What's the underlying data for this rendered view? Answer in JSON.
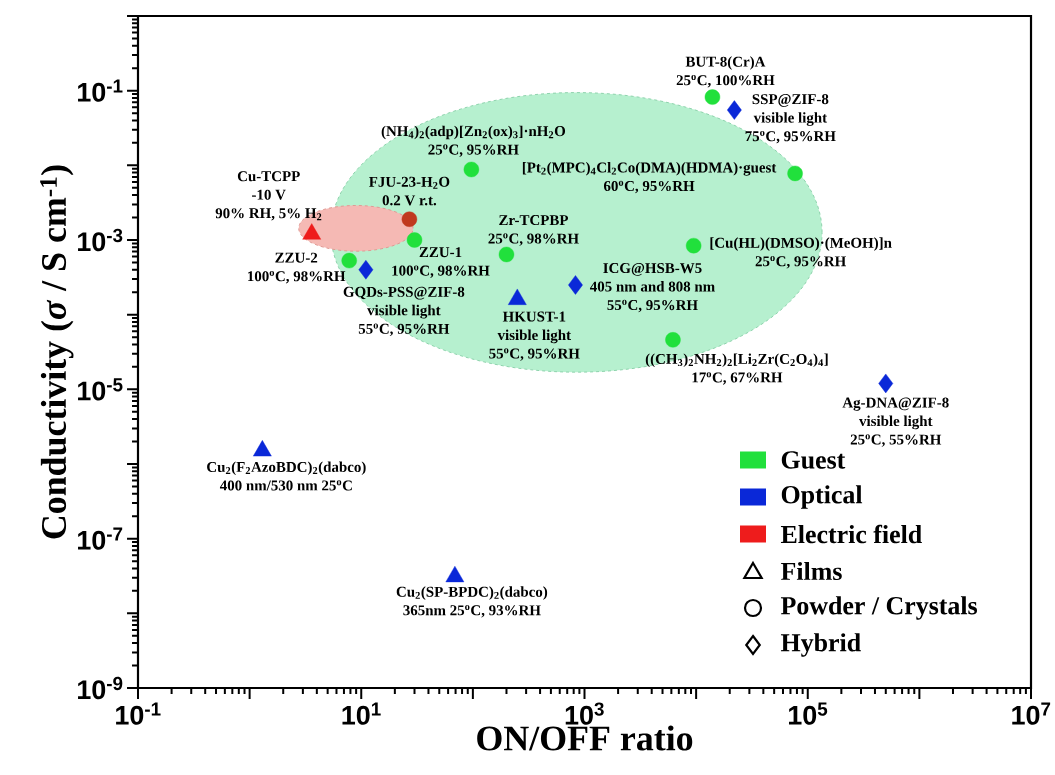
{
  "chart_data": {
    "type": "scatter",
    "xlabel": "ON/OFF ratio",
    "ylabel": "Conductivity (*σ* / S cm$^{-1}$)",
    "xlim": [
      0.1,
      10000000
    ],
    "ylim": [
      1e-09,
      1
    ],
    "xticks": [
      {
        "value": 0.1,
        "label": "10$^{-1}$"
      },
      {
        "value": 1,
        "label": null
      },
      {
        "value": 10,
        "label": "10$^{1}$"
      },
      {
        "value": 100,
        "label": null
      },
      {
        "value": 1000,
        "label": "10$^{3}$"
      },
      {
        "value": 10000,
        "label": null
      },
      {
        "value": 100000,
        "label": "10$^{5}$"
      },
      {
        "value": 1000000,
        "label": null
      },
      {
        "value": 10000000,
        "label": "10$^{7}$"
      }
    ],
    "yticks": [
      {
        "value": 1e-09,
        "label": "10$^{-9}$"
      },
      {
        "value": 1e-08,
        "label": null
      },
      {
        "value": 1e-07,
        "label": "10$^{-7}$"
      },
      {
        "value": 1e-06,
        "label": null
      },
      {
        "value": 1e-05,
        "label": "10$^{-5}$"
      },
      {
        "value": 0.0001,
        "label": null
      },
      {
        "value": 0.001,
        "label": "10$^{-3}$"
      },
      {
        "value": 0.01,
        "label": null
      },
      {
        "value": 0.1,
        "label": "10$^{-1}$"
      },
      {
        "value": 1,
        "label": null
      }
    ],
    "log": "xy",
    "grid": false,
    "legend": "bottom right",
    "series": [
      {
        "name": "Guest",
        "color": "#21e03c",
        "marker": "circle",
        "x": [
          14000,
          97,
          77000,
          30,
          200,
          7.8,
          9500,
          6200
        ],
        "values": [
          0.082,
          0.0088,
          0.0078,
          0.001,
          0.00064,
          0.00053,
          0.00084,
          4.6e-05
        ]
      },
      {
        "name": "Optical",
        "color": "#0a28d8",
        "marker": "triangle",
        "x": [
          250,
          1.3,
          69
        ],
        "values": [
          0.00016,
          1.5e-06,
          3.1e-08
        ]
      },
      {
        "color": "#0a28d8",
        "marker": "diamond",
        "x": [
          22000,
          11,
          830,
          500000
        ],
        "values": [
          0.055,
          0.0004,
          0.00025,
          1.2e-05
        ]
      },
      {
        "name": "Electric field",
        "color": "#ee1c1c",
        "marker": "triangle",
        "x": [
          3.6
        ],
        "values": [
          0.0012
        ]
      },
      {
        "color": "#c0391e",
        "marker": "circle",
        "x": [
          27
        ],
        "values": [
          0.0019
        ]
      }
    ],
    "annotations": [
      "Cu-TCPP",
      "-10 V",
      {
        "text": "90% RH, 5% H$_{2}$",
        "x": 3.6,
        "y": 0.0012
      },
      "FJU-23-H$_{2}$O",
      {
        "text": "0.2 V    r.t.",
        "x": 27,
        "y": 0.0019
      },
      {
        "text": "ZZU-2",
        "x": 7.8,
        "y": 0.00053
      },
      "100$^{o}$C, 98%RH",
      {
        "text": "ZZU-1",
        "x": 30,
        "y": 0.001
      },
      "100$^{o}$C, 98%RH",
      {
        "text": "GQDs-PSS@ZIF-8",
        "x": 11,
        "y": 0.0004
      },
      "visible light",
      "55$^{o}$C, 95%RH",
      "(NH$_{4}$)$_{2}$(adp)[Zn$_{2}$(ox)$_{3}$]·nH$_{2}$O",
      {
        "text": "25$^{o}$C, 95%RH",
        "x": 97,
        "y": 0.0088
      },
      "Zr-TCPBP",
      {
        "text": "25$^{o}$C, 98%RH",
        "x": 200,
        "y": 0.00064
      },
      {
        "text": "HKUST-1",
        "x": 250,
        "y": 0.00016
      },
      "visible light",
      "55$^{o}$C, 95%RH",
      {
        "text": "ICG@HSB-W5",
        "x": 830,
        "y": 0.00025
      },
      "405 nm and 808 nm",
      "55$^{o}$C, 95%RH",
      "BUT-8(Cr)A",
      {
        "text": "25$^{o}$C, 100%RH",
        "x": 14000,
        "y": 0.082
      },
      {
        "text": "SSP@ZIF-8",
        "x": 22000,
        "y": 0.055
      },
      "visible light",
      "75$^{o}$C, 95%RH",
      {
        "text": "[Pt$_{2}$(MPC)$_{4}$Cl$_{2}$Co(DMA)(HDMA)·guest",
        "x": 77000,
        "y": 0.0078
      },
      "60$^{o}$C, 95%RH",
      {
        "text": "[Cu(HL)(DMSO)·(MeOH)]n",
        "x": 9500,
        "y": 0.00084
      },
      "25$^{o}$C, 95%RH",
      "((CH$_{3}$)$_{2}$NH$_{2}$)$_{2}$[Li$_{2}$Zr(C$_{2}$O$_{4}$)$_{4}$]",
      {
        "text": "17$^{o}$C, 67%RH",
        "x": 6200,
        "y": 4.6e-05
      },
      {
        "text": "Ag-DNA@ZIF-8",
        "x": 500000,
        "y": 1.2e-05
      },
      "visible light",
      "25$^{o}$C, 55%RH",
      {
        "text": "Cu$_{2}$(F$_{2}$AzoBDC)$_{2}$(dabco)",
        "x": 1.3,
        "y": 1.5e-06
      },
      "400 nm/530 nm   25$^{o}$C",
      {
        "text": "Cu$_{2}$(SP-BPDC)$_{2}$(dabco)",
        "x": 69,
        "y": 3.1e-08
      },
      "365nm   25$^{o}$C, 93%RH",
      "Films",
      "Powder / Crystals",
      "Hybrid"
    ]
  }
}
